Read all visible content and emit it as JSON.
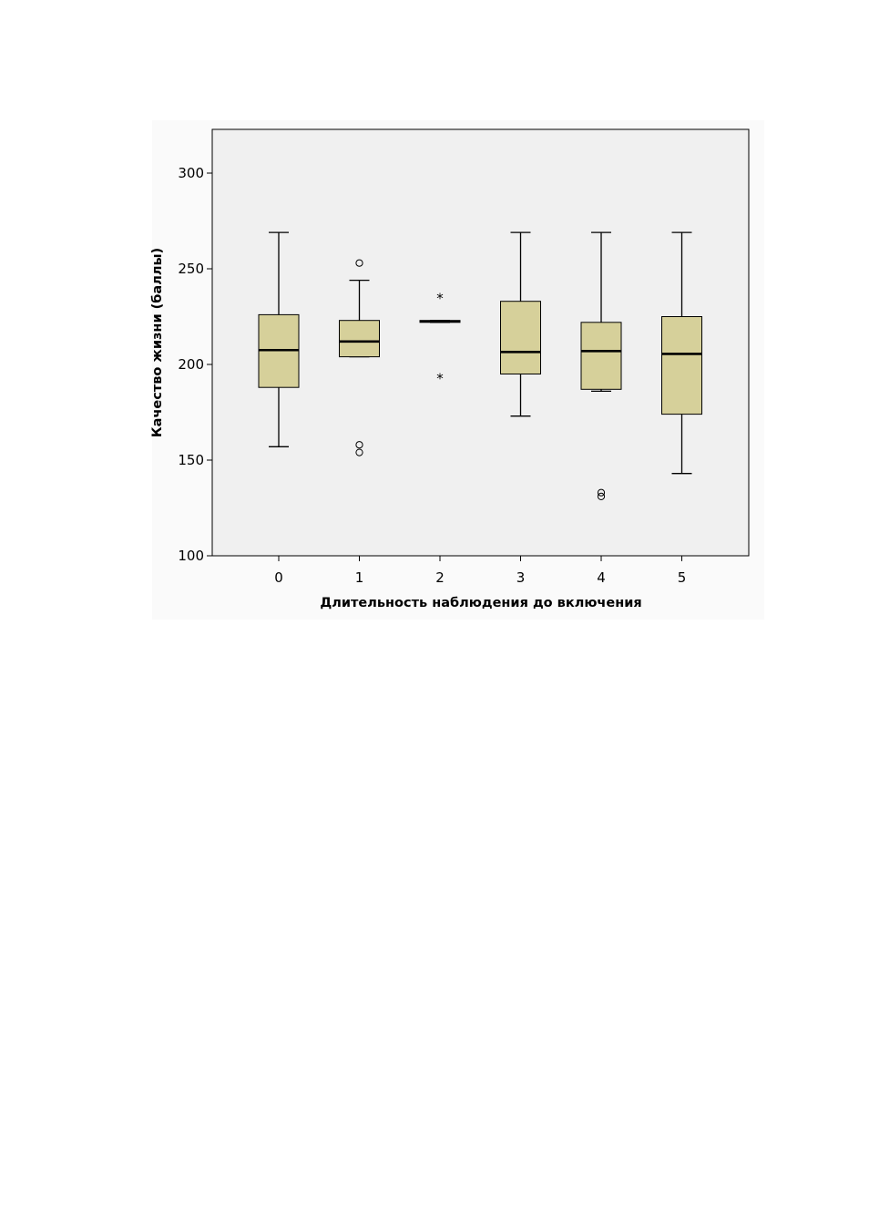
{
  "chart_data": {
    "type": "boxplot",
    "title": "",
    "xlabel": "Длительность наблюдения до включения",
    "ylabel": "Качество жизни (баллы)",
    "ylim": [
      100,
      322
    ],
    "yticks": [
      100,
      150,
      200,
      250,
      300
    ],
    "categories": [
      "0",
      "1",
      "2",
      "3",
      "4",
      "5"
    ],
    "grid": false,
    "colors": {
      "box_fill": "#d6d09a",
      "plot_background": "#f0f0f0",
      "outer_background": "#fafafa"
    },
    "boxes": [
      {
        "category": "0",
        "whisker_low": 157,
        "q1": 188,
        "median": 207.5,
        "q3": 226,
        "whisker_high": 269,
        "outliers": [],
        "extremes": []
      },
      {
        "category": "1",
        "whisker_low": 204,
        "q1": 204,
        "median": 212,
        "q3": 223,
        "whisker_high": 244,
        "outliers": [
          253,
          158,
          154
        ],
        "extremes": []
      },
      {
        "category": "2",
        "whisker_low": 222,
        "q1": 222,
        "median": 222.5,
        "q3": 223,
        "whisker_high": 223,
        "outliers": [],
        "extremes": [
          236,
          194
        ]
      },
      {
        "category": "3",
        "whisker_low": 173,
        "q1": 195,
        "median": 206.5,
        "q3": 233,
        "whisker_high": 269,
        "outliers": [],
        "extremes": []
      },
      {
        "category": "4",
        "whisker_low": 186,
        "q1": 187,
        "median": 207,
        "q3": 222,
        "whisker_high": 269,
        "outliers": [
          133,
          131
        ],
        "extremes": []
      },
      {
        "category": "5",
        "whisker_low": 143,
        "q1": 174,
        "median": 205.5,
        "q3": 225,
        "whisker_high": 269,
        "outliers": [],
        "extremes": []
      }
    ]
  }
}
